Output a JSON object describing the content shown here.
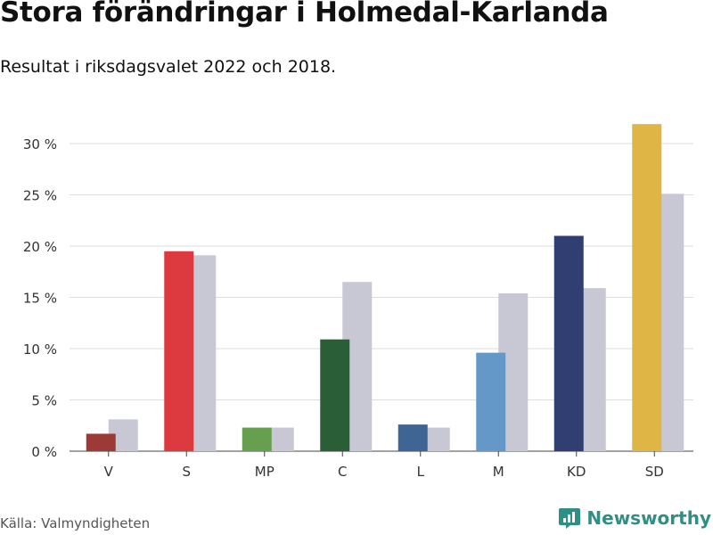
{
  "title": "Stora förändringar i Holmedal-Karlanda",
  "subtitle": "Resultat i riksdagsvalet 2022 och 2018.",
  "source": "Källa: Valmyndigheten",
  "brand": {
    "name": "Newsworthy",
    "icon": "bar-chart-icon",
    "color": "#2f8f84"
  },
  "chart_data": {
    "type": "bar",
    "categories": [
      "V",
      "S",
      "MP",
      "C",
      "L",
      "M",
      "KD",
      "SD"
    ],
    "series": [
      {
        "values": [
          1.7,
          19.5,
          2.3,
          10.9,
          2.6,
          9.6,
          21.0,
          31.9
        ],
        "colors": [
          "#9b3a36",
          "#dd3a3f",
          "#66a04e",
          "#2a5e37",
          "#3f6594",
          "#6498c8",
          "#313e72",
          "#dfb546"
        ]
      },
      {
        "values": [
          3.1,
          19.1,
          2.3,
          16.5,
          2.3,
          15.4,
          15.9,
          25.1
        ],
        "color": "#c8c8d4"
      }
    ],
    "yticks": [
      "0 %",
      "5 %",
      "10 %",
      "15 %",
      "20 %",
      "25 %",
      "30 %"
    ],
    "ylim": [
      0,
      32
    ],
    "grid": true,
    "legend": "none"
  }
}
